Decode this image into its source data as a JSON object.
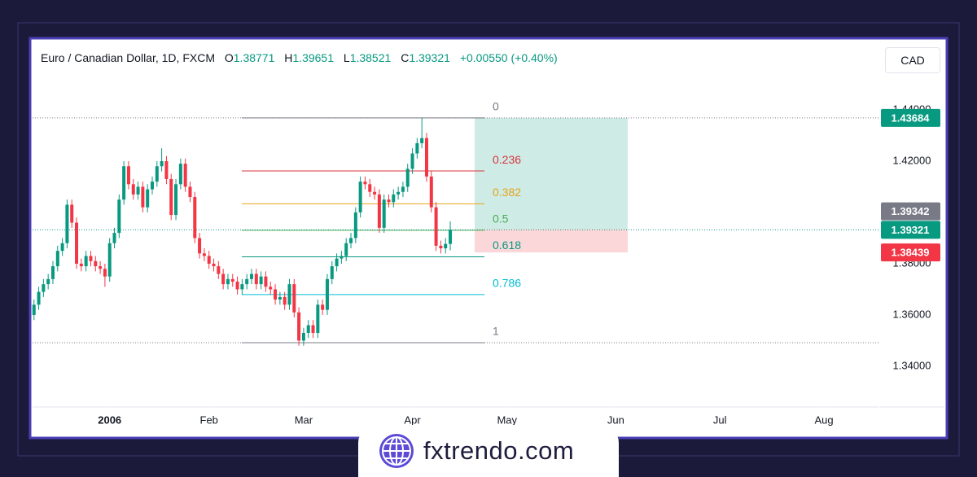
{
  "header": {
    "symbol": "Euro / Canadian Dollar, 1D, FXCM",
    "o_label": "O",
    "h_label": "H",
    "l_label": "L",
    "c_label": "C"
  },
  "currency_button": "CAD",
  "brand": "fxtrendo.com",
  "chart_data": {
    "type": "candlestick",
    "up_color": "#089981",
    "down_color": "#f23645",
    "xlim": [
      -0.3,
      178.7
    ],
    "xticks": [
      {
        "value": 16,
        "label": "2006"
      },
      {
        "value": 37,
        "label": "Feb"
      },
      {
        "value": 57,
        "label": "Mar"
      },
      {
        "value": 80,
        "label": "Apr"
      },
      {
        "value": 100,
        "label": "May"
      },
      {
        "value": 123,
        "label": "Jun"
      },
      {
        "value": 145,
        "label": "Jul"
      },
      {
        "value": 167,
        "label": "Aug"
      }
    ],
    "ylim": [
      1.3241,
      1.4511
    ],
    "yticks": [
      {
        "value": 1.34,
        "label": "1.34000"
      },
      {
        "value": 1.36,
        "label": "1.36000"
      },
      {
        "value": 1.38,
        "label": "1.38000"
      },
      {
        "value": 1.42,
        "label": "1.42000"
      },
      {
        "value": 1.44,
        "label": "1.44000"
      }
    ],
    "open": [
      1.36,
      1.364,
      1.369,
      1.372,
      1.374,
      1.379,
      1.385,
      1.388,
      1.403,
      1.396,
      1.38,
      1.379,
      1.383,
      1.381,
      1.379,
      1.378,
      1.375,
      1.388,
      1.392,
      1.405,
      1.418,
      1.411,
      1.407,
      1.41,
      1.402,
      1.409,
      1.412,
      1.418,
      1.42,
      1.413,
      1.399,
      1.411,
      1.419,
      1.41,
      1.406,
      1.39,
      1.384,
      1.383,
      1.38,
      1.379,
      1.376,
      1.372,
      1.374,
      1.373,
      1.37,
      1.372,
      1.374,
      1.376,
      1.372,
      1.375,
      1.371,
      1.37,
      1.366,
      1.367,
      1.364,
      1.372,
      1.361,
      1.35,
      1.353,
      1.356,
      1.353,
      1.364,
      1.362,
      1.374,
      1.379,
      1.382,
      1.383,
      1.388,
      1.39,
      1.4,
      1.412,
      1.411,
      1.408,
      1.407,
      1.394,
      1.405,
      1.404,
      1.407,
      1.408,
      1.41,
      1.417,
      1.423,
      1.427,
      1.429,
      1.414,
      1.402,
      1.387,
      1.386,
      1.38771
    ],
    "high": [
      1.366,
      1.371,
      1.374,
      1.376,
      1.381,
      1.387,
      1.39,
      1.405,
      1.405,
      1.398,
      1.382,
      1.385,
      1.385,
      1.383,
      1.381,
      1.38,
      1.39,
      1.394,
      1.407,
      1.42,
      1.42,
      1.413,
      1.412,
      1.412,
      1.411,
      1.414,
      1.42,
      1.425,
      1.422,
      1.415,
      1.413,
      1.421,
      1.421,
      1.412,
      1.408,
      1.392,
      1.386,
      1.385,
      1.382,
      1.381,
      1.378,
      1.376,
      1.376,
      1.375,
      1.374,
      1.376,
      1.378,
      1.378,
      1.377,
      1.377,
      1.373,
      1.372,
      1.369,
      1.369,
      1.374,
      1.374,
      1.363,
      1.355,
      1.358,
      1.358,
      1.366,
      1.366,
      1.376,
      1.381,
      1.384,
      1.385,
      1.39,
      1.392,
      1.402,
      1.414,
      1.414,
      1.413,
      1.41,
      1.409,
      1.407,
      1.407,
      1.409,
      1.41,
      1.412,
      1.419,
      1.425,
      1.429,
      1.4368,
      1.431,
      1.416,
      1.404,
      1.389,
      1.39,
      1.39651
    ],
    "low": [
      1.358,
      1.362,
      1.367,
      1.37,
      1.372,
      1.377,
      1.383,
      1.386,
      1.394,
      1.378,
      1.377,
      1.377,
      1.379,
      1.377,
      1.376,
      1.371,
      1.373,
      1.386,
      1.39,
      1.403,
      1.409,
      1.405,
      1.405,
      1.4,
      1.4,
      1.407,
      1.41,
      1.416,
      1.411,
      1.397,
      1.397,
      1.409,
      1.408,
      1.404,
      1.388,
      1.382,
      1.381,
      1.378,
      1.377,
      1.374,
      1.37,
      1.37,
      1.371,
      1.368,
      1.368,
      1.37,
      1.372,
      1.37,
      1.37,
      1.369,
      1.368,
      1.364,
      1.364,
      1.362,
      1.362,
      1.359,
      1.348,
      1.348,
      1.351,
      1.351,
      1.351,
      1.36,
      1.36,
      1.372,
      1.377,
      1.38,
      1.381,
      1.386,
      1.388,
      1.398,
      1.409,
      1.406,
      1.405,
      1.392,
      1.392,
      1.402,
      1.402,
      1.405,
      1.406,
      1.408,
      1.415,
      1.421,
      1.425,
      1.412,
      1.4,
      1.385,
      1.384,
      1.384,
      1.38521
    ],
    "close": [
      1.364,
      1.369,
      1.372,
      1.374,
      1.379,
      1.385,
      1.388,
      1.403,
      1.396,
      1.38,
      1.379,
      1.383,
      1.381,
      1.379,
      1.378,
      1.375,
      1.388,
      1.392,
      1.405,
      1.418,
      1.411,
      1.407,
      1.41,
      1.402,
      1.409,
      1.412,
      1.418,
      1.42,
      1.413,
      1.399,
      1.411,
      1.419,
      1.41,
      1.406,
      1.39,
      1.384,
      1.383,
      1.38,
      1.379,
      1.376,
      1.372,
      1.374,
      1.373,
      1.37,
      1.372,
      1.374,
      1.376,
      1.372,
      1.375,
      1.371,
      1.37,
      1.366,
      1.367,
      1.364,
      1.372,
      1.361,
      1.35,
      1.353,
      1.356,
      1.353,
      1.364,
      1.362,
      1.374,
      1.379,
      1.382,
      1.383,
      1.388,
      1.39,
      1.4,
      1.412,
      1.411,
      1.408,
      1.407,
      1.394,
      1.405,
      1.404,
      1.407,
      1.408,
      1.41,
      1.417,
      1.423,
      1.427,
      1.429,
      1.414,
      1.402,
      1.387,
      1.386,
      1.38771,
      1.39321
    ],
    "change": {
      "value": 0.0055,
      "label": "+0.00550"
    },
    "change_pct": {
      "value": 0.4,
      "label": "(+0.40%)"
    },
    "fibonacci": {
      "high": 1.43684,
      "low": 1.3492,
      "levels": [
        {
          "value": 0,
          "color": "#787b86"
        },
        {
          "value": 0.236,
          "color": "#d9363e"
        },
        {
          "value": 0.382,
          "color": "#e8a317"
        },
        {
          "value": 0.5,
          "color": "#4caf50"
        },
        {
          "value": 0.618,
          "color": "#089981"
        },
        {
          "value": 0.786,
          "color": "#00bcd4"
        },
        {
          "value": 1,
          "color": "#787b86"
        }
      ]
    },
    "position": {
      "target": 1.43684,
      "entry": 1.39342,
      "stop": 1.38439,
      "profit_color": "#089981",
      "loss_color": "#f23645",
      "entry_color": "#787b86"
    }
  }
}
